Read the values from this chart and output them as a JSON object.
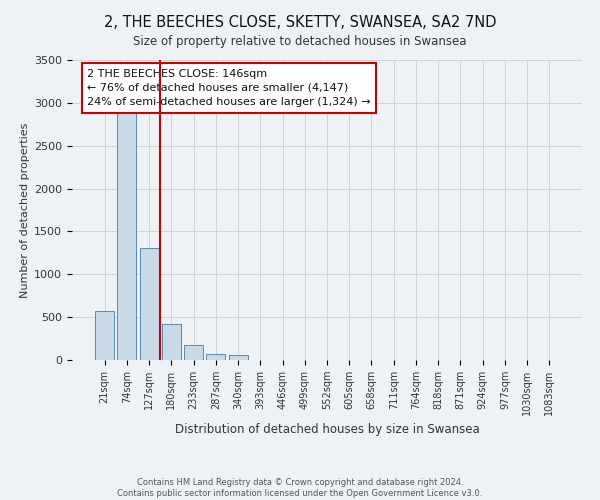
{
  "title": "2, THE BEECHES CLOSE, SKETTY, SWANSEA, SA2 7ND",
  "subtitle": "Size of property relative to detached houses in Swansea",
  "xlabel": "Distribution of detached houses by size in Swansea",
  "ylabel": "Number of detached properties",
  "footer_line1": "Contains HM Land Registry data © Crown copyright and database right 2024.",
  "footer_line2": "Contains public sector information licensed under the Open Government Licence v3.0.",
  "bar_labels": [
    "21sqm",
    "74sqm",
    "127sqm",
    "180sqm",
    "233sqm",
    "287sqm",
    "340sqm",
    "393sqm",
    "446sqm",
    "499sqm",
    "552sqm",
    "605sqm",
    "658sqm",
    "711sqm",
    "764sqm",
    "818sqm",
    "871sqm",
    "924sqm",
    "977sqm",
    "1030sqm",
    "1083sqm"
  ],
  "bar_values": [
    570,
    2920,
    1310,
    415,
    170,
    65,
    55,
    0,
    0,
    0,
    0,
    0,
    0,
    0,
    0,
    0,
    0,
    0,
    0,
    0,
    0
  ],
  "bar_color": "#c8d9e8",
  "bar_edge_color": "#5a8ab0",
  "ylim": [
    0,
    3500
  ],
  "yticks": [
    0,
    500,
    1000,
    1500,
    2000,
    2500,
    3000,
    3500
  ],
  "property_line_x": 2.47,
  "annotation_title": "2 THE BEECHES CLOSE: 146sqm",
  "annotation_line1": "← 76% of detached houses are smaller (4,147)",
  "annotation_line2": "24% of semi-detached houses are larger (1,324) →",
  "red_line_color": "#cc0000",
  "background_color": "#eef2f7",
  "grid_color": "#c8cdd6"
}
